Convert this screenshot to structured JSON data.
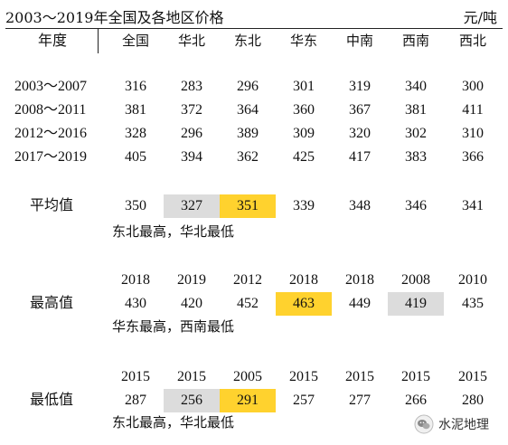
{
  "title": "2003～2019年全国及各地区价格",
  "unit": "元/吨",
  "header": {
    "label": "年度",
    "columns": [
      "全国",
      "华北",
      "东北",
      "华东",
      "中南",
      "西南",
      "西北"
    ]
  },
  "periods": [
    {
      "label": "2003～2007",
      "values": [
        "316",
        "283",
        "296",
        "301",
        "319",
        "340",
        "300"
      ]
    },
    {
      "label": "2008～2011",
      "values": [
        "381",
        "372",
        "364",
        "360",
        "367",
        "381",
        "411"
      ]
    },
    {
      "label": "2012～2016",
      "values": [
        "328",
        "296",
        "389",
        "309",
        "320",
        "302",
        "310"
      ]
    },
    {
      "label": "2017～2019",
      "values": [
        "405",
        "394",
        "362",
        "425",
        "417",
        "383",
        "366"
      ]
    }
  ],
  "average": {
    "label": "平均值",
    "values": [
      "350",
      "327",
      "351",
      "339",
      "348",
      "346",
      "341"
    ],
    "note": "东北最高，华北最低"
  },
  "max": {
    "label": "最高值",
    "years": [
      "2018",
      "2019",
      "2012",
      "2018",
      "2018",
      "2008",
      "2010"
    ],
    "values": [
      "430",
      "420",
      "452",
      "463",
      "449",
      "419",
      "435"
    ],
    "note": "华东最高，西南最低"
  },
  "min": {
    "label": "最低值",
    "years": [
      "2015",
      "2015",
      "2005",
      "2015",
      "2015",
      "2015",
      "2015"
    ],
    "values": [
      "287",
      "256",
      "291",
      "257",
      "277",
      "266",
      "280"
    ],
    "note": "东北最高，华北最低"
  },
  "highlight_colors": {
    "highest": "#ffd22e",
    "lowest": "#dcdcdc"
  },
  "watermark": {
    "text": "水泥地理",
    "icon": "wechat-icon"
  }
}
